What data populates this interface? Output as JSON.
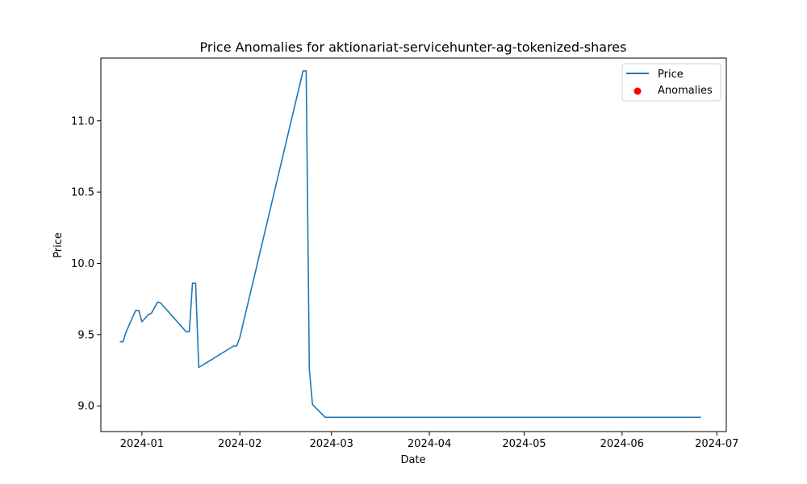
{
  "chart_data": {
    "type": "line",
    "title": "Price Anomalies for aktionariat-servicehunter-ag-tokenized-shares",
    "xlabel": "Date",
    "ylabel": "Price",
    "x_axis_type": "date",
    "xlim": [
      "2023-12-19",
      "2024-07-04"
    ],
    "ylim": [
      8.82,
      11.44
    ],
    "x_ticks": [
      "2024-01",
      "2024-02",
      "2024-03",
      "2024-04",
      "2024-05",
      "2024-06",
      "2024-07"
    ],
    "y_ticks": [
      "9.0",
      "9.5",
      "10.0",
      "10.5",
      "11.0"
    ],
    "grid": false,
    "legend_position": "top-right",
    "series": [
      {
        "name": "Price",
        "kind": "line",
        "color": "#1f77b4",
        "points": [
          {
            "x": "2023-12-25",
            "y": 9.45
          },
          {
            "x": "2023-12-26",
            "y": 9.45
          },
          {
            "x": "2023-12-27",
            "y": 9.52
          },
          {
            "x": "2023-12-30",
            "y": 9.67
          },
          {
            "x": "2023-12-31",
            "y": 9.67
          },
          {
            "x": "2024-01-01",
            "y": 9.59
          },
          {
            "x": "2024-01-03",
            "y": 9.64
          },
          {
            "x": "2024-01-04",
            "y": 9.65
          },
          {
            "x": "2024-01-06",
            "y": 9.73
          },
          {
            "x": "2024-01-07",
            "y": 9.72
          },
          {
            "x": "2024-01-15",
            "y": 9.52
          },
          {
            "x": "2024-01-16",
            "y": 9.52
          },
          {
            "x": "2024-01-17",
            "y": 9.86
          },
          {
            "x": "2024-01-18",
            "y": 9.86
          },
          {
            "x": "2024-01-19",
            "y": 9.27
          },
          {
            "x": "2024-01-30",
            "y": 9.42
          },
          {
            "x": "2024-01-31",
            "y": 9.42
          },
          {
            "x": "2024-02-01",
            "y": 9.48
          },
          {
            "x": "2024-02-21",
            "y": 11.35
          },
          {
            "x": "2024-02-22",
            "y": 11.35
          },
          {
            "x": "2024-02-23",
            "y": 9.26
          },
          {
            "x": "2024-02-24",
            "y": 9.01
          },
          {
            "x": "2024-02-28",
            "y": 8.92
          },
          {
            "x": "2024-06-26",
            "y": 8.92
          }
        ]
      },
      {
        "name": "Anomalies",
        "kind": "scatter",
        "color": "#ff0000",
        "points": []
      }
    ]
  }
}
